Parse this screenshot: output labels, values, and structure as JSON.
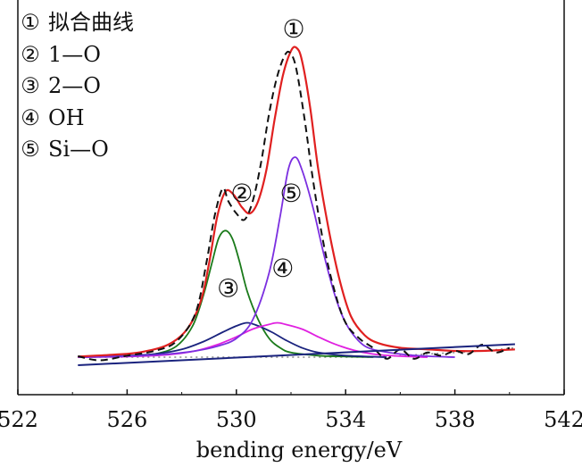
{
  "chart_data": {
    "type": "line",
    "title": "",
    "xlabel": "bending energy/eV",
    "ylabel": "",
    "xlim": [
      522,
      542
    ],
    "x_ticks": [
      "522",
      "526",
      "530",
      "534",
      "538",
      "542"
    ],
    "y_ticks": [],
    "grid": false,
    "legend_placement": "top-left",
    "legend": [
      {
        "marker": "①",
        "label": "拟合曲线"
      },
      {
        "marker": "②",
        "label": "1—O"
      },
      {
        "marker": "③",
        "label": "2—O"
      },
      {
        "marker": "④",
        "label": "OH"
      },
      {
        "marker": "⑤",
        "label": "Si—O"
      }
    ],
    "annotations": [
      {
        "text": "①",
        "x": 532.1,
        "y": 1.0
      },
      {
        "text": "②",
        "x": 530.2,
        "y": 0.475
      },
      {
        "text": "③",
        "x": 529.7,
        "y": 0.17
      },
      {
        "text": "④",
        "x": 531.7,
        "y": 0.235
      },
      {
        "text": "⑤",
        "x": 532.0,
        "y": 0.475
      }
    ],
    "background": {
      "x": [
        524.2,
        525.0,
        526.0,
        527.0,
        528.0,
        529.0,
        530.0,
        531.0,
        532.0,
        533.0,
        534.0,
        535.0,
        536.0,
        537.0,
        538.0,
        539.0,
        540.2
      ],
      "values": [
        0.0,
        0.0,
        0.0,
        0.0,
        0.0,
        0.0,
        0.0,
        0.0,
        0.0,
        0.0,
        0.0,
        0.0,
        0.005,
        0.01,
        0.015,
        0.02,
        0.03
      ]
    },
    "series": [
      {
        "marker": "②",
        "label": "1—O",
        "color": "#1a7a1a",
        "x": [
          524.2,
          525.0,
          526.0,
          527.0,
          527.8,
          528.4,
          528.8,
          529.1,
          529.35,
          529.6,
          529.85,
          530.1,
          530.4,
          530.8,
          531.2,
          531.6,
          532.0,
          533.0,
          534.0,
          535.0
        ],
        "values": [
          0.0,
          0.001,
          0.003,
          0.01,
          0.035,
          0.1,
          0.2,
          0.3,
          0.38,
          0.405,
          0.38,
          0.31,
          0.21,
          0.12,
          0.06,
          0.03,
          0.015,
          0.005,
          0.002,
          0.0
        ]
      },
      {
        "marker": "③",
        "label": "2—O",
        "color": "#1a237e",
        "x": [
          524.2,
          525.5,
          527.0,
          528.0,
          528.8,
          529.5,
          530.0,
          530.4,
          530.8,
          531.3,
          531.8,
          532.4,
          533.0,
          534.0,
          535.5
        ],
        "values": [
          0.0,
          0.003,
          0.01,
          0.025,
          0.05,
          0.08,
          0.1,
          0.11,
          0.1,
          0.08,
          0.055,
          0.03,
          0.015,
          0.005,
          0.0
        ]
      },
      {
        "marker": "④",
        "label": "OH",
        "color": "#e020e0",
        "x": [
          524.2,
          526.0,
          527.5,
          528.5,
          529.3,
          530.0,
          530.6,
          531.2,
          531.5,
          531.8,
          532.4,
          533.0,
          533.6,
          534.3,
          535.0,
          536.0,
          537.0
        ],
        "values": [
          0.0,
          0.002,
          0.008,
          0.02,
          0.04,
          0.065,
          0.09,
          0.105,
          0.11,
          0.105,
          0.09,
          0.065,
          0.042,
          0.022,
          0.01,
          0.003,
          0.0
        ]
      },
      {
        "marker": "⑤",
        "label": "Si—O",
        "color": "#7b2fe0",
        "x": [
          524.2,
          526.0,
          527.5,
          528.5,
          529.3,
          530.0,
          530.6,
          531.2,
          531.6,
          531.9,
          532.15,
          532.4,
          532.8,
          533.2,
          533.6,
          534.0,
          534.5,
          535.0,
          536.0,
          537.0,
          538.0
        ],
        "values": [
          0.0,
          0.003,
          0.01,
          0.02,
          0.035,
          0.06,
          0.12,
          0.27,
          0.45,
          0.6,
          0.64,
          0.6,
          0.48,
          0.33,
          0.2,
          0.11,
          0.05,
          0.025,
          0.01,
          0.003,
          0.0
        ]
      },
      {
        "marker": "①",
        "label": "拟合曲线",
        "color": "#e02020",
        "x": [
          524.2,
          525.5,
          526.5,
          527.5,
          528.2,
          528.7,
          529.0,
          529.3,
          529.6,
          529.9,
          530.2,
          530.5,
          530.8,
          531.1,
          531.4,
          531.7,
          532.0,
          532.2,
          532.4,
          532.7,
          533.0,
          533.4,
          533.8,
          534.2,
          534.7,
          535.2,
          536.0,
          537.0,
          538.0,
          539.0,
          540.2
        ],
        "values": [
          0.002,
          0.008,
          0.016,
          0.04,
          0.09,
          0.18,
          0.3,
          0.45,
          0.53,
          0.52,
          0.48,
          0.46,
          0.5,
          0.6,
          0.76,
          0.9,
          0.98,
          0.99,
          0.95,
          0.8,
          0.6,
          0.4,
          0.24,
          0.13,
          0.07,
          0.045,
          0.03,
          0.025,
          0.02,
          0.02,
          0.025
        ]
      }
    ],
    "experimental": {
      "label": "dashed",
      "color": "#111111",
      "x": [
        524.2,
        525.0,
        526.0,
        527.0,
        527.8,
        528.5,
        528.9,
        529.2,
        529.5,
        529.7,
        530.0,
        530.3,
        530.6,
        530.9,
        531.2,
        531.5,
        531.8,
        532.0,
        532.2,
        532.5,
        532.8,
        533.2,
        533.6,
        534.0,
        534.5,
        535.0,
        535.5,
        536.0,
        536.5,
        537.0,
        537.5,
        538.0,
        538.5,
        539.0,
        539.5,
        540.0
      ],
      "values": [
        0.003,
        -0.01,
        0.005,
        0.02,
        0.05,
        0.14,
        0.3,
        0.45,
        0.54,
        0.5,
        0.46,
        0.44,
        0.5,
        0.62,
        0.78,
        0.9,
        0.97,
        0.97,
        0.92,
        0.76,
        0.57,
        0.36,
        0.21,
        0.11,
        0.06,
        0.03,
        -0.005,
        0.025,
        -0.005,
        0.015,
        0.005,
        0.02,
        0.01,
        0.04,
        0.015,
        0.03
      ]
    }
  }
}
